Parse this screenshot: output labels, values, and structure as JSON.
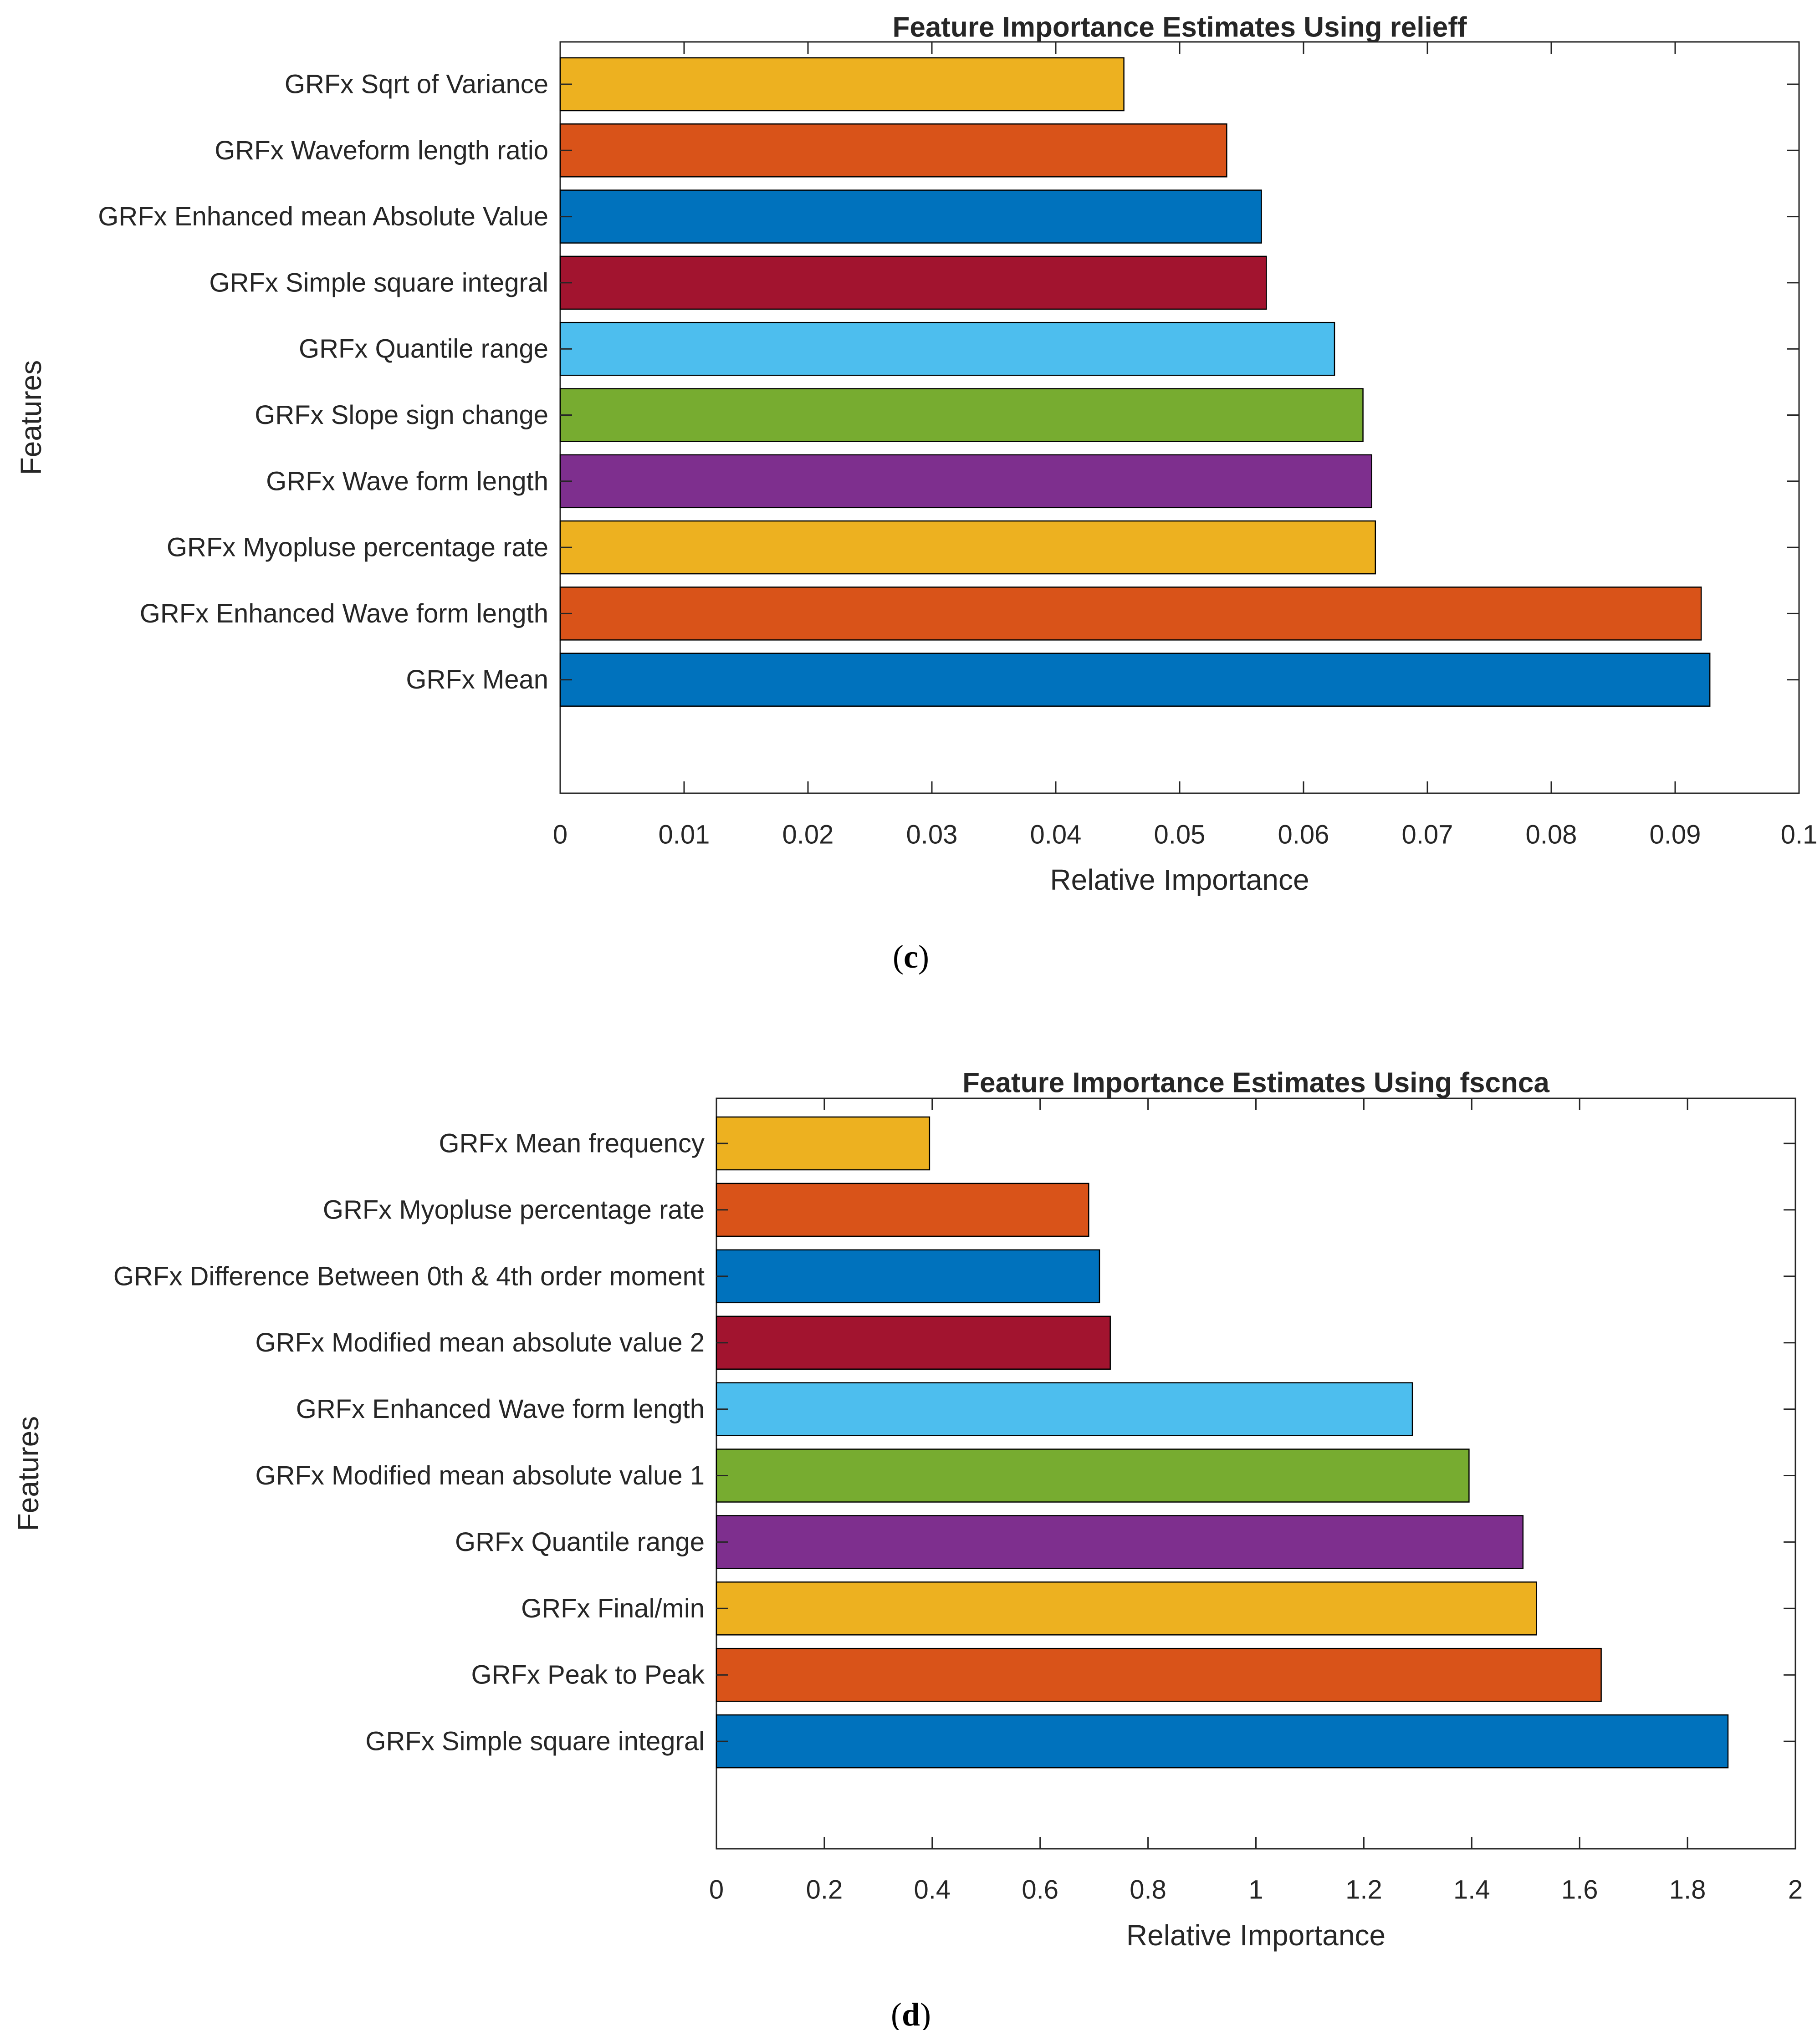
{
  "chart_data": [
    {
      "type": "bar",
      "orientation": "horizontal",
      "title": "Feature Importance Estimates Using relieff",
      "xlabel": "Relative Importance",
      "ylabel": "Features",
      "xlim": [
        0,
        0.1
      ],
      "xticks": [
        0,
        0.01,
        0.02,
        0.03,
        0.04,
        0.05,
        0.06,
        0.07,
        0.08,
        0.09,
        0.1
      ],
      "xtick_labels": [
        "0",
        "0.01",
        "0.02",
        "0.03",
        "0.04",
        "0.05",
        "0.06",
        "0.07",
        "0.08",
        "0.09",
        "0.1"
      ],
      "grid": false,
      "categories": [
        "GRFx Sqrt of Variance",
        "GRFx Waveform length ratio",
        "GRFx Enhanced mean Absolute Value",
        "GRFx Simple square integral",
        "GRFx Quantile range",
        "GRFx Slope sign change",
        "GRFx Wave form length",
        "GRFx Myopluse percentage rate",
        "GRFx Enhanced Wave form length",
        "GRFx Mean"
      ],
      "values": [
        0.0455,
        0.0538,
        0.0566,
        0.057,
        0.0625,
        0.0648,
        0.0655,
        0.0658,
        0.0921,
        0.0928
      ],
      "colors": [
        "#EDB120",
        "#D95319",
        "#0072BD",
        "#A2142F",
        "#4DBEEE",
        "#77AC30",
        "#7E2F8E",
        "#EDB120",
        "#D95319",
        "#0072BD"
      ],
      "caption": {
        "open": "(",
        "letter": "c",
        "close": ")"
      }
    },
    {
      "type": "bar",
      "orientation": "horizontal",
      "title": "Feature Importance Estimates Using fscnca",
      "xlabel": "Relative Importance",
      "ylabel": "Features",
      "xlim": [
        0,
        2
      ],
      "xticks": [
        0,
        0.2,
        0.4,
        0.6,
        0.8,
        1,
        1.2,
        1.4,
        1.6,
        1.8,
        2
      ],
      "xtick_labels": [
        "0",
        "0.2",
        "0.4",
        "0.6",
        "0.8",
        "1",
        "1.2",
        "1.4",
        "1.6",
        "1.8",
        "2"
      ],
      "grid": false,
      "categories": [
        "GRFx Mean frequency",
        "GRFx Myopluse percentage rate",
        "GRFx Difference Between 0th & 4th order moment",
        "GRFx Modified mean absolute value 2",
        "GRFx Enhanced Wave form length",
        "GRFx Modified mean absolute value 1",
        "GRFx Quantile range",
        "GRFx Final/min",
        "GRFx Peak to Peak",
        "GRFx Simple square integral"
      ],
      "values": [
        0.395,
        0.69,
        0.71,
        0.73,
        1.29,
        1.395,
        1.495,
        1.52,
        1.64,
        1.875
      ],
      "colors": [
        "#EDB120",
        "#D95319",
        "#0072BD",
        "#A2142F",
        "#4DBEEE",
        "#77AC30",
        "#7E2F8E",
        "#EDB120",
        "#D95319",
        "#0072BD"
      ],
      "caption": {
        "open": "(",
        "letter": "d",
        "close": ")"
      }
    }
  ]
}
